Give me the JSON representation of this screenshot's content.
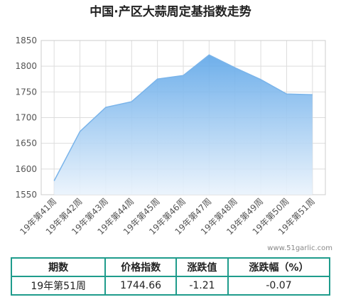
{
  "chart_data": {
    "type": "area",
    "title": "中国·产区大蒜周定基指数走势",
    "categories": [
      "19年第41周",
      "19年第42周",
      "19年第43周",
      "19年第44周",
      "19年第45周",
      "19年第46周",
      "19年第47周",
      "19年第48周",
      "19年第49周",
      "19年第50周",
      "19年第51周"
    ],
    "values": [
      1577,
      1673,
      1720,
      1731,
      1775,
      1782,
      1822,
      1797,
      1774,
      1746,
      1744.66
    ],
    "color": "#7ab4ea",
    "ylim": [
      1550,
      1850
    ],
    "yticks": [
      1550,
      1600,
      1650,
      1700,
      1750,
      1800,
      1850
    ],
    "grid": true
  },
  "watermark": "www.51garlic.com",
  "table": {
    "headers": [
      "期数",
      "价格指数",
      "涨跌值",
      "涨跌幅（%）"
    ],
    "rows": [
      [
        "19年第51周",
        1744.66,
        -1.21,
        -0.07
      ]
    ]
  }
}
